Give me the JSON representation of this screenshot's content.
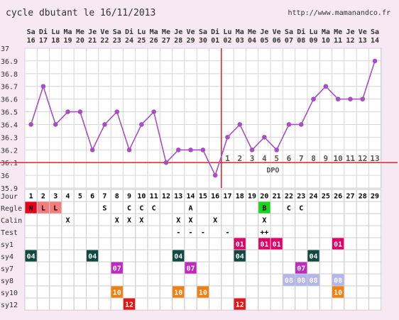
{
  "header": {
    "title": "cycle dbutant le 16/11/2013",
    "site": "http://www.mamanandco.fr"
  },
  "chart_data": {
    "type": "line",
    "day_names": [
      "Sa",
      "Di",
      "Lu",
      "Ma",
      "Me",
      "Je",
      "Ve",
      "Sa",
      "Di",
      "Lu",
      "Ma",
      "Me",
      "Je",
      "Ve",
      "Sa",
      "Di",
      "Lu",
      "Ma",
      "Me",
      "Je",
      "Ve",
      "Sa",
      "Di",
      "Lu",
      "Ma",
      "Me",
      "Je",
      "Ve",
      "Sa"
    ],
    "dates": [
      "16",
      "17",
      "18",
      "19",
      "20",
      "21",
      "22",
      "23",
      "24",
      "25",
      "26",
      "27",
      "28",
      "29",
      "30",
      "01",
      "02",
      "03",
      "04",
      "05",
      "06",
      "07",
      "08",
      "09",
      "10",
      "11",
      "12",
      "13",
      "14"
    ],
    "jour": [
      1,
      2,
      3,
      4,
      5,
      6,
      7,
      8,
      9,
      10,
      11,
      12,
      13,
      14,
      15,
      16,
      17,
      18,
      19,
      20,
      21,
      22,
      23,
      24,
      25,
      26,
      27,
      28,
      29
    ],
    "temperatures": [
      36.4,
      36.7,
      36.4,
      36.5,
      36.5,
      36.2,
      36.4,
      36.5,
      36.2,
      36.4,
      36.5,
      36.1,
      36.2,
      36.2,
      36.2,
      36.0,
      36.3,
      36.4,
      36.2,
      36.3,
      36.2,
      36.4,
      36.4,
      36.6,
      36.7,
      36.6,
      36.6,
      36.6,
      36.9
    ],
    "ylim": [
      35.9,
      37.0
    ],
    "yticks": [
      "37",
      "36.9",
      "36.8",
      "36.7",
      "36.6",
      "36.5",
      "36.4",
      "36.3",
      "36.2",
      "36.1",
      "36",
      "35.9"
    ],
    "coverline": 36.1,
    "ovulation_day": 16,
    "dpo_numbers": [
      "1",
      "2",
      "3",
      "4",
      "5",
      "6",
      "7",
      "8",
      "9",
      "10",
      "11",
      "12",
      "13"
    ],
    "dpo_label": "DPO",
    "line_color": "#a64fc4",
    "grid": true
  },
  "table": {
    "jour_label": "Jour",
    "rows": [
      {
        "label": "Regle",
        "cells": {
          "1": {
            "t": "N",
            "bg": "#e8001c",
            "c": "#000"
          },
          "2": {
            "t": "L",
            "bg": "#f47c7c",
            "c": "#000"
          },
          "3": {
            "t": "L",
            "bg": "#f47c7c",
            "c": "#000"
          },
          "7": {
            "t": "S"
          },
          "9": {
            "t": "C"
          },
          "10": {
            "t": "C"
          },
          "11": {
            "t": "C"
          },
          "14": {
            "t": "A"
          },
          "20": {
            "t": "B",
            "bg": "#18d618",
            "c": "#000"
          },
          "22": {
            "t": "C"
          },
          "23": {
            "t": "C"
          }
        }
      },
      {
        "label": "Calin",
        "cells": {
          "4": {
            "t": "X"
          },
          "8": {
            "t": "X"
          },
          "9": {
            "t": "X"
          },
          "10": {
            "t": "X"
          },
          "13": {
            "t": "X"
          },
          "14": {
            "t": "X"
          },
          "16": {
            "t": "X"
          },
          "20": {
            "t": "X"
          }
        }
      },
      {
        "label": "Test",
        "cells": {
          "13": {
            "t": "-"
          },
          "14": {
            "t": "-"
          },
          "15": {
            "t": "-"
          },
          "17": {
            "t": "-"
          },
          "20": {
            "t": "++"
          }
        }
      },
      {
        "label": "sy1",
        "cells": {
          "18": {
            "t": "01",
            "bg": "#e0006a",
            "c": "#fff"
          },
          "20": {
            "t": "01",
            "bg": "#e0006a",
            "c": "#fff"
          },
          "21": {
            "t": "01",
            "bg": "#e0006a",
            "c": "#fff"
          },
          "26": {
            "t": "01",
            "bg": "#e0006a",
            "c": "#fff"
          }
        }
      },
      {
        "label": "sy4",
        "cells": {
          "1": {
            "t": "04",
            "bg": "#0e4a40",
            "c": "#fff"
          },
          "6": {
            "t": "04",
            "bg": "#0e4a40",
            "c": "#fff"
          },
          "13": {
            "t": "04",
            "bg": "#0e4a40",
            "c": "#fff"
          },
          "18": {
            "t": "04",
            "bg": "#0e4a40",
            "c": "#fff"
          },
          "24": {
            "t": "04",
            "bg": "#0e4a40",
            "c": "#fff"
          }
        }
      },
      {
        "label": "sy7",
        "cells": {
          "8": {
            "t": "07",
            "bg": "#c028c0",
            "c": "#fff"
          },
          "14": {
            "t": "07",
            "bg": "#c028c0",
            "c": "#fff"
          },
          "23": {
            "t": "07",
            "bg": "#c028c0",
            "c": "#fff"
          }
        }
      },
      {
        "label": "sy8",
        "cells": {
          "22": {
            "t": "08",
            "bg": "#b4b4ee",
            "c": "#fff"
          },
          "23": {
            "t": "08",
            "bg": "#b4b4ee",
            "c": "#fff"
          },
          "24": {
            "t": "08",
            "bg": "#b4b4ee",
            "c": "#fff"
          },
          "26": {
            "t": "08",
            "bg": "#b4b4ee",
            "c": "#fff"
          }
        }
      },
      {
        "label": "sy10",
        "cells": {
          "8": {
            "t": "10",
            "bg": "#f08010",
            "c": "#fff"
          },
          "13": {
            "t": "10",
            "bg": "#f08010",
            "c": "#fff"
          },
          "15": {
            "t": "10",
            "bg": "#f08010",
            "c": "#fff"
          },
          "26": {
            "t": "10",
            "bg": "#f08010",
            "c": "#fff"
          }
        }
      },
      {
        "label": "sy12",
        "cells": {
          "9": {
            "t": "12",
            "bg": "#e01818",
            "c": "#fff"
          },
          "18": {
            "t": "12",
            "bg": "#e01818",
            "c": "#fff"
          }
        }
      }
    ]
  }
}
